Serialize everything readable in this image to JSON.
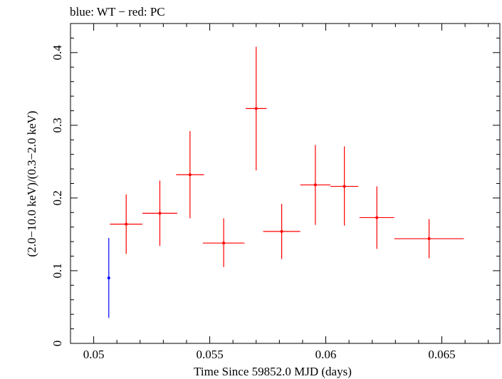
{
  "chart_data": {
    "type": "scatter",
    "title": "blue: WT − red: PC",
    "xlabel": "Time Since 59852.0 MJD (days)",
    "ylabel": "(2.0−10.0 keV)/(0.3−2.0 keV)",
    "xlim": [
      0.049,
      0.0675
    ],
    "ylim": [
      0,
      0.44
    ],
    "x_ticks": [
      0.05,
      0.055,
      0.06,
      0.065
    ],
    "x_tick_labels": [
      "0.05",
      "0.055",
      "0.06",
      "0.065"
    ],
    "y_ticks": [
      0,
      0.1,
      0.2,
      0.3,
      0.4
    ],
    "y_tick_labels": [
      "0",
      "0.1",
      "0.2",
      "0.3",
      "0.4"
    ],
    "grid": false,
    "series": [
      {
        "name": "WT",
        "color": "#0000ff",
        "points": [
          {
            "x": 0.05065,
            "xerr": 0,
            "y": 0.09,
            "ylo": 0.035,
            "yhi": 0.145
          }
        ]
      },
      {
        "name": "PC",
        "color": "#ff0000",
        "points": [
          {
            "x": 0.0514,
            "xerr": 0.0007,
            "y": 0.164,
            "ylo": 0.123,
            "yhi": 0.205
          },
          {
            "x": 0.05285,
            "xerr": 0.00075,
            "y": 0.179,
            "ylo": 0.134,
            "yhi": 0.224
          },
          {
            "x": 0.05415,
            "xerr": 0.0006,
            "y": 0.232,
            "ylo": 0.172,
            "yhi": 0.292
          },
          {
            "x": 0.0556,
            "xerr": 0.0009,
            "y": 0.138,
            "ylo": 0.105,
            "yhi": 0.172
          },
          {
            "x": 0.057,
            "xerr": 0.00045,
            "y": 0.323,
            "ylo": 0.238,
            "yhi": 0.408
          },
          {
            "x": 0.0581,
            "xerr": 0.0008,
            "y": 0.154,
            "ylo": 0.116,
            "yhi": 0.192
          },
          {
            "x": 0.05955,
            "xerr": 0.00065,
            "y": 0.218,
            "ylo": 0.163,
            "yhi": 0.273
          },
          {
            "x": 0.0608,
            "xerr": 0.0006,
            "y": 0.216,
            "ylo": 0.162,
            "yhi": 0.271
          },
          {
            "x": 0.0622,
            "xerr": 0.00075,
            "y": 0.173,
            "ylo": 0.13,
            "yhi": 0.216
          },
          {
            "x": 0.06445,
            "xerr": 0.0015,
            "y": 0.144,
            "ylo": 0.117,
            "yhi": 0.171
          }
        ]
      }
    ]
  }
}
